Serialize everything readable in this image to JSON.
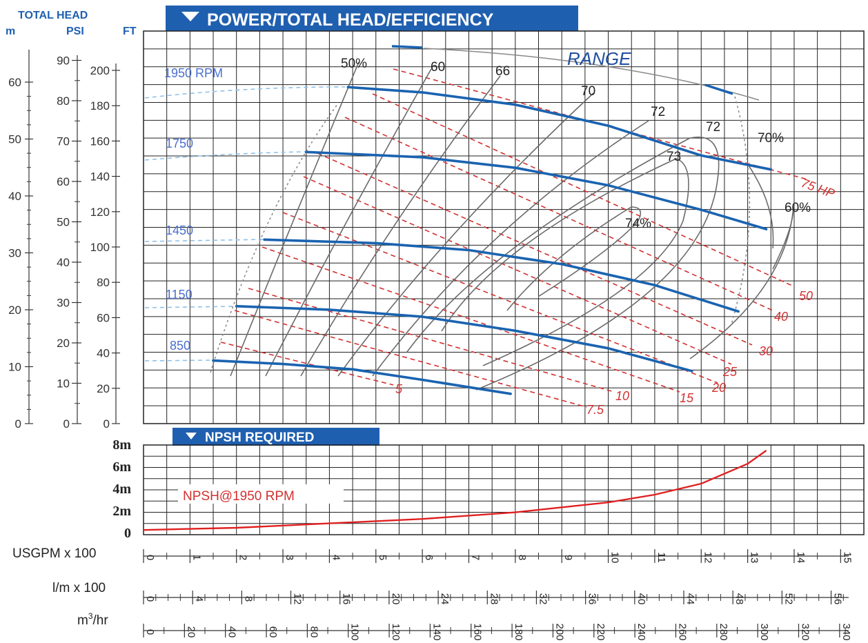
{
  "header": {
    "total_head": "TOTAL HEAD",
    "unit_m": "m",
    "unit_psi": "PSI",
    "unit_ft": "FT",
    "main_title": "POWER/TOTAL HEAD/EFFICIENCY",
    "npsh_title": "NPSH REQUIRED",
    "range_label": "RANGE",
    "npsh_curve_label": "NPSH@1950 RPM"
  },
  "axes": {
    "m_ticks": [
      "0",
      "10",
      "20",
      "30",
      "40",
      "50",
      "60"
    ],
    "psi_ticks": [
      "0",
      "10",
      "20",
      "30",
      "40",
      "50",
      "60",
      "70",
      "80",
      "90"
    ],
    "ft_ticks": [
      "0",
      "20",
      "40",
      "60",
      "80",
      "100",
      "120",
      "140",
      "160",
      "180",
      "200"
    ],
    "npsh_ticks": [
      "0",
      "2m",
      "4m",
      "6m",
      "8m"
    ],
    "usgpm_label": "USGPM x 100",
    "usgpm_ticks": [
      "0",
      "1",
      "2",
      "3",
      "4",
      "5",
      "6",
      "7",
      "8",
      "9",
      "10",
      "11",
      "12",
      "13",
      "14",
      "15"
    ],
    "lpm_label": "l/m x 100",
    "lpm_ticks": [
      "0",
      "4",
      "8",
      "12",
      "16",
      "20",
      "24",
      "28",
      "32",
      "36",
      "40",
      "44",
      "48",
      "52",
      "56"
    ],
    "m3hr_label_main": "m",
    "m3hr_label_sup": "3",
    "m3hr_label_tail": "/hr",
    "m3hr_ticks": [
      "0",
      "20",
      "40",
      "60",
      "80",
      "100",
      "120",
      "140",
      "160",
      "180",
      "200",
      "220",
      "240",
      "260",
      "280",
      "300",
      "320",
      "340"
    ]
  },
  "colors": {
    "brand_blue": "#1f5fb0",
    "head_curve": "#1a63b0",
    "rpm_label": "#4a6fd0",
    "hp_line": "#d23030",
    "npsh_curve": "#e02020",
    "eff_line": "#666666",
    "grid": "#222222"
  },
  "chart_data": [
    {
      "type": "line",
      "title": "POWER/TOTAL HEAD/EFFICIENCY",
      "x_unit": "USGPM x 100",
      "y_unit": "FT",
      "xlim": [
        0,
        15.5
      ],
      "ylim": [
        0,
        200
      ],
      "grid": true,
      "series": [
        {
          "name": "1950 RPM",
          "x": [
            4.4,
            6,
            8,
            10,
            12,
            13.5
          ],
          "y": [
            192,
            189,
            182,
            170,
            153,
            145
          ]
        },
        {
          "name": "1750 RPM",
          "x": [
            3.5,
            6,
            8,
            10,
            12,
            13.4
          ],
          "y": [
            155,
            152,
            146,
            136,
            122,
            111
          ]
        },
        {
          "name": "1450 RPM",
          "x": [
            2.6,
            5,
            7,
            9,
            11,
            12.8
          ],
          "y": [
            105,
            103,
            99,
            91,
            79,
            64
          ]
        },
        {
          "name": "1150 RPM",
          "x": [
            2,
            4,
            6,
            8,
            10,
            11.8
          ],
          "y": [
            67,
            65,
            61,
            53,
            43,
            30
          ]
        },
        {
          "name": "850 RPM",
          "x": [
            1.5,
            3,
            4.5,
            6,
            7.9
          ],
          "y": [
            36,
            34,
            31,
            25,
            17
          ]
        }
      ],
      "efficiency_labels": [
        "50%",
        "60",
        "66",
        "70",
        "72",
        "72",
        "73",
        "74%",
        "70%",
        "60%"
      ],
      "hp_labels": [
        "5",
        "7.5",
        "10",
        "15",
        "20",
        "25",
        "30",
        "40",
        "50",
        "75 HP"
      ],
      "range_label": "RANGE"
    },
    {
      "type": "line",
      "title": "NPSH REQUIRED",
      "x_unit": "USGPM x 100",
      "y_unit": "m",
      "xlim": [
        0,
        15.5
      ],
      "ylim": [
        0,
        8
      ],
      "grid": true,
      "series": [
        {
          "name": "NPSH@1950 RPM",
          "x": [
            0,
            2,
            4,
            6,
            8,
            10,
            11,
            12,
            13,
            13.4
          ],
          "y": [
            0.3,
            0.5,
            0.9,
            1.3,
            1.9,
            2.8,
            3.5,
            4.5,
            6.3,
            7.5
          ]
        }
      ]
    }
  ]
}
